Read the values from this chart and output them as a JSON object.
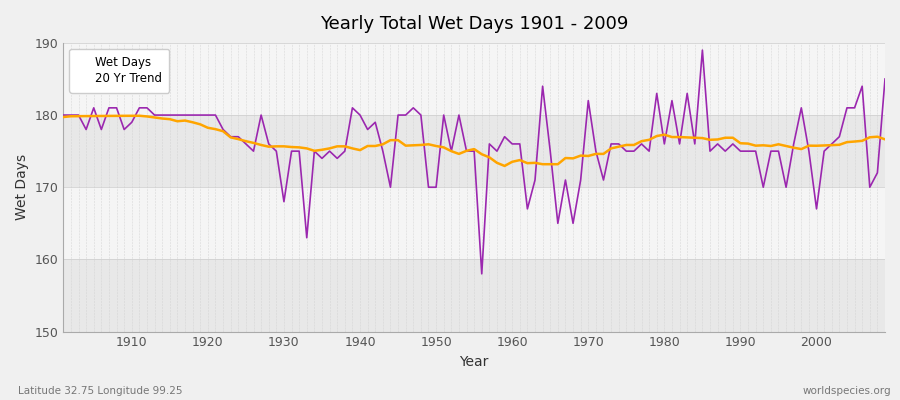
{
  "title": "Yearly Total Wet Days 1901 - 2009",
  "xlabel": "Year",
  "ylabel": "Wet Days",
  "xlim": [
    1901,
    2009
  ],
  "ylim": [
    150,
    190
  ],
  "yticks": [
    150,
    160,
    170,
    180,
    190
  ],
  "xticks": [
    1910,
    1920,
    1930,
    1940,
    1950,
    1960,
    1970,
    1980,
    1990,
    2000
  ],
  "fig_bg_color": "#f0f0f0",
  "plot_bg_color": "#f5f5f5",
  "band_color_dark": "#e8e8e8",
  "band_color_light": "#f5f5f5",
  "grid_color": "#cccccc",
  "wet_days_color": "#9b27af",
  "trend_color": "#FFA500",
  "subtitle_left": "Latitude 32.75 Longitude 99.25",
  "subtitle_right": "worldspecies.org",
  "wet_days": [
    180,
    180,
    180,
    178,
    181,
    178,
    181,
    181,
    178,
    179,
    181,
    181,
    180,
    180,
    180,
    180,
    180,
    180,
    180,
    180,
    180,
    178,
    177,
    177,
    176,
    175,
    180,
    176,
    175,
    168,
    175,
    175,
    163,
    175,
    174,
    175,
    174,
    175,
    181,
    180,
    178,
    179,
    175,
    170,
    180,
    180,
    181,
    180,
    170,
    170,
    180,
    175,
    180,
    175,
    175,
    158,
    176,
    175,
    177,
    176,
    176,
    167,
    171,
    184,
    175,
    165,
    171,
    165,
    171,
    182,
    175,
    171,
    176,
    176,
    175,
    175,
    176,
    175,
    183,
    176,
    182,
    176,
    183,
    176,
    189,
    175,
    176,
    175,
    176,
    175,
    175,
    175,
    170,
    175,
    175,
    170,
    176,
    181,
    175,
    167,
    175,
    176,
    177,
    181,
    181,
    184,
    170,
    172,
    185
  ]
}
